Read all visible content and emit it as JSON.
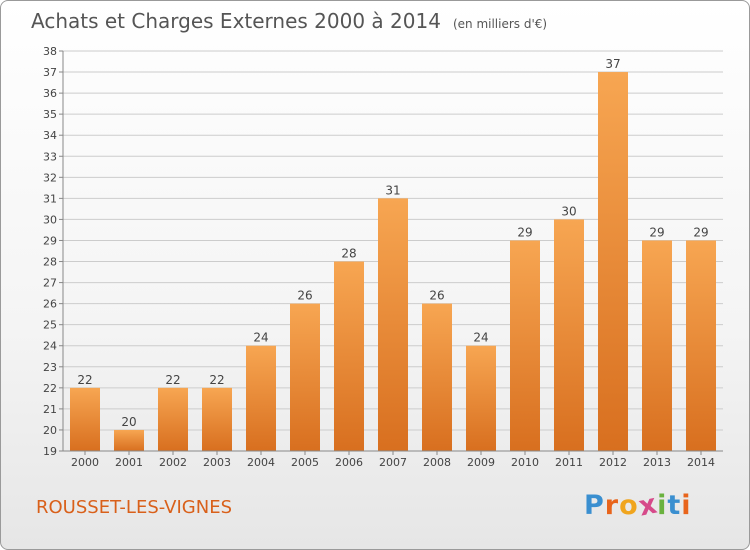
{
  "header": {
    "title": "Achats et Charges Externes 2000 à 2014",
    "subtitle": "(en milliers d'€)"
  },
  "footer": {
    "place": "ROUSSET-LES-VIGNES",
    "brand": {
      "letters": [
        "P",
        "r",
        "o",
        "x",
        "i",
        "t",
        "i"
      ],
      "colors": [
        "#3a8fd0",
        "#e8641b",
        "#f0a51e",
        "#d64a8a",
        "#6ab23e",
        "#3a8fd0",
        "#e8641b"
      ]
    }
  },
  "colors": {
    "bar_light": "#f7a652",
    "bar_dark": "#d86f1f",
    "grid": "#cccccc",
    "axis_text": "#444444",
    "place": "#d9601a"
  },
  "chart_data": {
    "type": "bar",
    "title": "Achats et Charges Externes 2000 à 2014",
    "subtitle": "(en milliers d'€)",
    "categories": [
      "2000",
      "2001",
      "2002",
      "2003",
      "2004",
      "2005",
      "2006",
      "2007",
      "2008",
      "2009",
      "2010",
      "2011",
      "2012",
      "2013",
      "2014"
    ],
    "values": [
      22,
      20,
      22,
      22,
      24,
      26,
      28,
      31,
      26,
      24,
      29,
      30,
      37,
      29,
      29
    ],
    "ylim": [
      19,
      38
    ],
    "yticks": [
      19,
      20,
      21,
      22,
      23,
      24,
      25,
      26,
      27,
      28,
      29,
      30,
      31,
      32,
      33,
      34,
      35,
      36,
      37,
      38
    ],
    "xlabel": "",
    "ylabel": "",
    "grid": true
  }
}
